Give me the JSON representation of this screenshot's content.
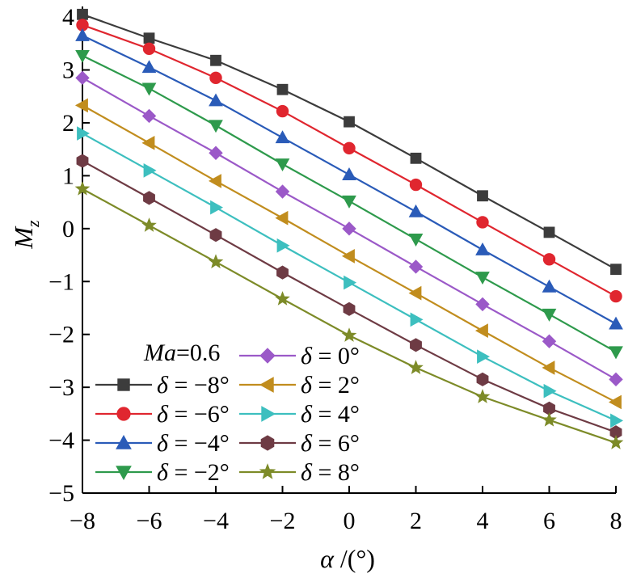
{
  "chart_data": {
    "type": "line",
    "title": "",
    "xlabel_var": "α",
    "xlabel_unit": " /(°)",
    "ylabel_var": "M",
    "ylabel_sub": "z",
    "xlim": [
      -8,
      8
    ],
    "ylim": [
      -5,
      4.2
    ],
    "xticks": [
      -8,
      -6,
      -4,
      -2,
      0,
      2,
      4,
      6,
      8
    ],
    "xtick_labels": [
      "−8",
      "−6",
      "−4",
      "−2",
      "0",
      "2",
      "4",
      "6",
      "8"
    ],
    "yticks": [
      -5,
      -4,
      -3,
      -2,
      -1,
      0,
      1,
      2,
      3,
      4
    ],
    "ytick_labels": [
      "−5",
      "−4",
      "−3",
      "−2",
      "−1",
      "0",
      "1",
      "2",
      "3",
      "4"
    ],
    "grid": false,
    "legend_placement": "bottom-left",
    "legend_title_var": "Ma",
    "legend_title_value": "=0.6",
    "x": [
      -8,
      -6,
      -4,
      -2,
      0,
      2,
      4,
      6,
      8
    ],
    "series": [
      {
        "name_var": "δ",
        "name_value": " = −8°",
        "color": "#3c3c3c",
        "marker": "square",
        "values": [
          4.05,
          3.6,
          3.18,
          2.63,
          2.02,
          1.33,
          0.62,
          -0.07,
          -0.77
        ]
      },
      {
        "name_var": "δ",
        "name_value": " = −6°",
        "color": "#e0262f",
        "marker": "circle",
        "values": [
          3.85,
          3.4,
          2.85,
          2.22,
          1.52,
          0.83,
          0.12,
          -0.58,
          -1.28
        ]
      },
      {
        "name_var": "δ",
        "name_value": " = −4°",
        "color": "#2a5bb8",
        "marker": "triangle-up",
        "values": [
          3.65,
          3.05,
          2.42,
          1.72,
          1.02,
          0.32,
          -0.4,
          -1.1,
          -1.8
        ]
      },
      {
        "name_var": "δ",
        "name_value": " = −2°",
        "color": "#2e9a4c",
        "marker": "triangle-down",
        "values": [
          3.27,
          2.65,
          1.95,
          1.22,
          0.52,
          -0.2,
          -0.92,
          -1.62,
          -2.33
        ]
      },
      {
        "name_var": "δ",
        "name_value": " = 0°",
        "color": "#9b59c8",
        "marker": "diamond",
        "values": [
          2.85,
          2.13,
          1.43,
          0.7,
          0.0,
          -0.72,
          -1.43,
          -2.13,
          -2.85
        ]
      },
      {
        "name_var": "δ",
        "name_value": " = 2°",
        "color": "#c18d1e",
        "marker": "triangle-left",
        "values": [
          2.33,
          1.62,
          0.9,
          0.2,
          -0.52,
          -1.22,
          -1.93,
          -2.63,
          -3.28
        ]
      },
      {
        "name_var": "δ",
        "name_value": " = 4°",
        "color": "#3dbfbf",
        "marker": "triangle-right",
        "values": [
          1.8,
          1.1,
          0.4,
          -0.32,
          -1.02,
          -1.72,
          -2.42,
          -3.07,
          -3.63
        ]
      },
      {
        "name_var": "δ",
        "name_value": " = 6°",
        "color": "#6e3b44",
        "marker": "hexagon",
        "values": [
          1.28,
          0.58,
          -0.12,
          -0.83,
          -1.52,
          -2.2,
          -2.85,
          -3.4,
          -3.85
        ]
      },
      {
        "name_var": "δ",
        "name_value": " = 8°",
        "color": "#7d8b28",
        "marker": "star",
        "values": [
          0.75,
          0.06,
          -0.63,
          -1.33,
          -2.02,
          -2.63,
          -3.18,
          -3.62,
          -4.05
        ]
      }
    ]
  }
}
